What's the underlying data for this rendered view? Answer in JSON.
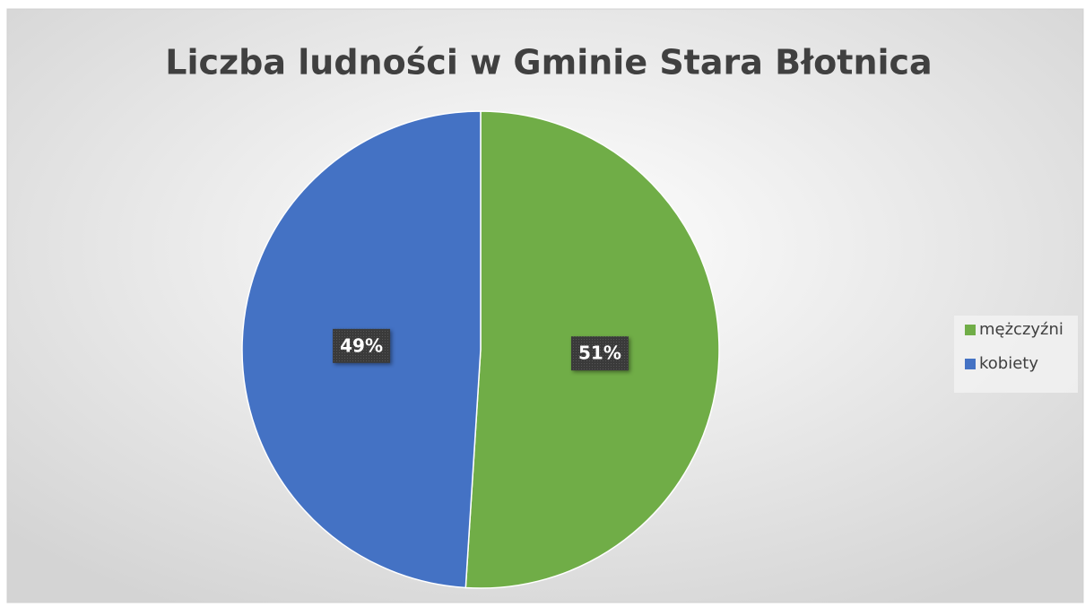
{
  "chart_data": {
    "type": "pie",
    "title": "Liczba ludności w Gminie Stara Błotnica",
    "categories": [
      "mężczyźni",
      "kobiety"
    ],
    "values": [
      51,
      49
    ],
    "value_labels": [
      "51%",
      "49%"
    ],
    "colors": [
      "#70ad47",
      "#4472c4"
    ],
    "legend": "right"
  }
}
